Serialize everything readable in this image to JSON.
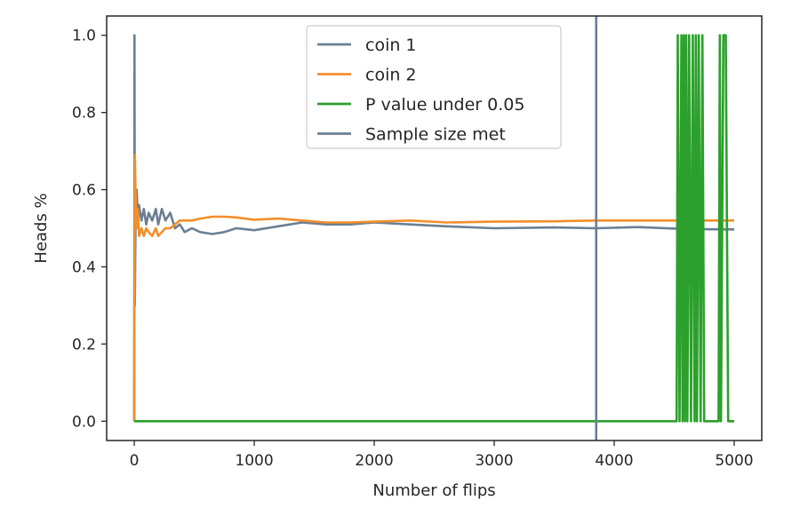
{
  "chart_data": {
    "type": "line",
    "title": "",
    "xlabel": "Number of flips",
    "ylabel": "Heads %",
    "xlim": [
      -230,
      5230
    ],
    "ylim": [
      -0.05,
      1.05
    ],
    "xticks": [
      0,
      1000,
      2000,
      3000,
      4000,
      5000
    ],
    "xtick_labels": [
      "0",
      "1000",
      "2000",
      "3000",
      "4000",
      "5000"
    ],
    "yticks": [
      0.0,
      0.2,
      0.4,
      0.6,
      0.8,
      1.0
    ],
    "ytick_labels": [
      "0.0",
      "0.2",
      "0.4",
      "0.6",
      "0.8",
      "1.0"
    ],
    "grid": false,
    "legend_position": "upper-center",
    "series": [
      {
        "name": "coin 1",
        "color": "#6a7f94",
        "x": [
          0,
          2,
          5,
          10,
          20,
          30,
          40,
          60,
          80,
          100,
          120,
          150,
          180,
          200,
          230,
          260,
          300,
          340,
          380,
          420,
          480,
          550,
          650,
          750,
          850,
          1000,
          1200,
          1400,
          1600,
          1800,
          2000,
          2300,
          2600,
          3000,
          3500,
          3850,
          4200,
          4600,
          5000
        ],
        "y": [
          0.0,
          1.0,
          0.3,
          0.5,
          0.6,
          0.52,
          0.56,
          0.52,
          0.55,
          0.51,
          0.54,
          0.52,
          0.55,
          0.51,
          0.55,
          0.52,
          0.54,
          0.5,
          0.51,
          0.49,
          0.5,
          0.49,
          0.485,
          0.49,
          0.5,
          0.495,
          0.505,
          0.515,
          0.51,
          0.51,
          0.515,
          0.51,
          0.505,
          0.5,
          0.502,
          0.5,
          0.503,
          0.498,
          0.497
        ]
      },
      {
        "name": "coin 2",
        "color": "#f28e2b",
        "x": [
          0,
          2,
          5,
          10,
          20,
          30,
          40,
          60,
          80,
          100,
          120,
          150,
          180,
          200,
          230,
          260,
          300,
          340,
          380,
          420,
          480,
          550,
          650,
          750,
          850,
          1000,
          1200,
          1400,
          1600,
          1800,
          2000,
          2300,
          2600,
          3000,
          3500,
          3850,
          4200,
          4600,
          5000
        ],
        "y": [
          0.0,
          0.4,
          0.69,
          0.6,
          0.5,
          0.55,
          0.48,
          0.5,
          0.48,
          0.5,
          0.49,
          0.48,
          0.5,
          0.48,
          0.49,
          0.5,
          0.5,
          0.51,
          0.52,
          0.52,
          0.52,
          0.525,
          0.53,
          0.53,
          0.528,
          0.522,
          0.525,
          0.52,
          0.515,
          0.515,
          0.517,
          0.52,
          0.515,
          0.517,
          0.518,
          0.52,
          0.52,
          0.52,
          0.52
        ]
      },
      {
        "name": "P value under 0.05",
        "color": "#2ca02c",
        "x": [
          0,
          4520,
          4530,
          4545,
          4560,
          4570,
          4580,
          4590,
          4600,
          4610,
          4625,
          4640,
          4655,
          4670,
          4680,
          4690,
          4705,
          4720,
          4735,
          4750,
          4870,
          4880,
          4890,
          4910,
          4930,
          4950,
          5000
        ],
        "y": [
          0.0,
          0.0,
          1.0,
          0.0,
          1.0,
          0.0,
          1.0,
          0.0,
          1.0,
          0.0,
          1.0,
          0.0,
          1.0,
          0.0,
          1.0,
          0.0,
          1.0,
          0.0,
          1.0,
          0.0,
          0.0,
          1.0,
          0.0,
          1.0,
          1.0,
          0.0,
          0.0
        ]
      },
      {
        "name": "Sample size met",
        "color": "#6a7f94",
        "vline_x": 3850
      }
    ]
  }
}
